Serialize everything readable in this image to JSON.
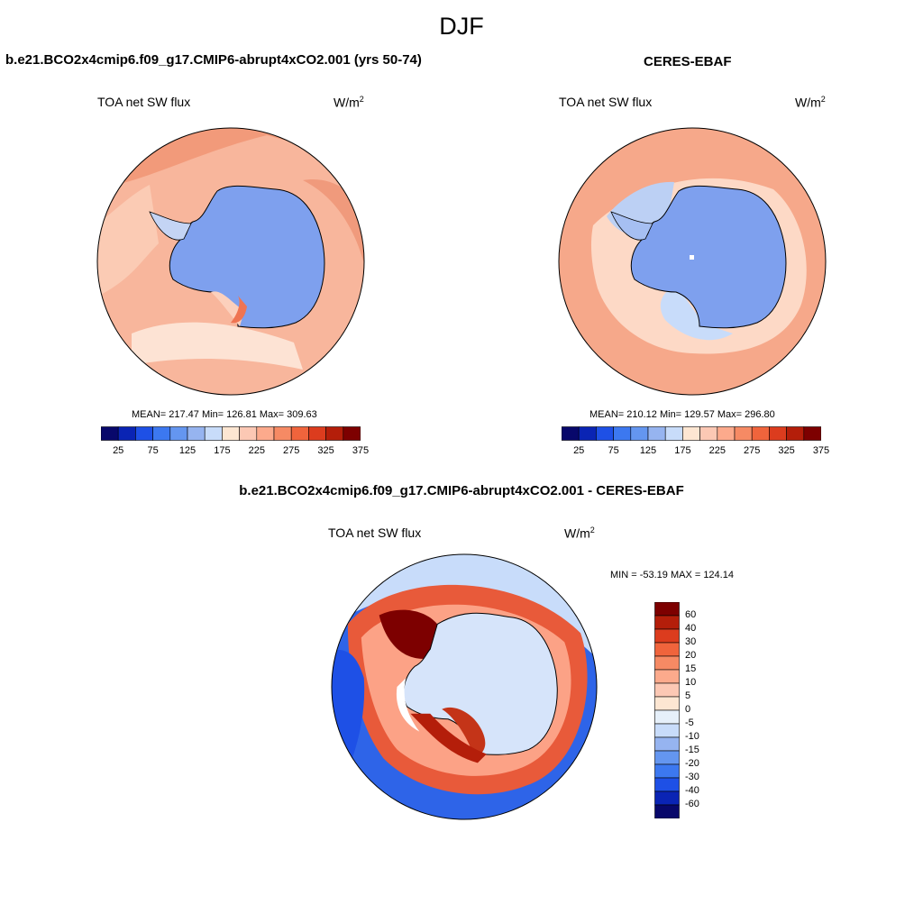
{
  "title": "DJF",
  "panels": [
    {
      "title": "b.e21.BCO2x4cmip6.f09_g17.CMIP6-abrupt4xCO2.001 (yrs 50-74)",
      "variable": "TOA net SW flux",
      "units_base": "W/m",
      "units_exp": "2",
      "stats": "MEAN= 217.47  Min= 126.81  Max= 309.63"
    },
    {
      "title": "CERES-EBAF",
      "variable": "TOA net SW flux",
      "units_base": "W/m",
      "units_exp": "2",
      "stats": "MEAN= 210.12  Min= 129.57  Max= 296.80"
    },
    {
      "title": "b.e21.BCO2x4cmip6.f09_g17.CMIP6-abrupt4xCO2.001 - CERES-EBAF",
      "variable": "TOA net SW flux",
      "units_base": "W/m",
      "units_exp": "2",
      "stats": "MIN = -53.19 MAX = 124.14"
    }
  ],
  "colorbar_main": {
    "colors": [
      "#08086b",
      "#0a24b4",
      "#1e50e6",
      "#3c78f0",
      "#6496f0",
      "#96b4f0",
      "#c8dcfa",
      "#fde6d2",
      "#fcc8b4",
      "#fcaa8c",
      "#f68a64",
      "#f0643c",
      "#dc3c1e",
      "#b41e0a",
      "#7d0000"
    ],
    "labels": [
      "25",
      "75",
      "125",
      "175",
      "225",
      "275",
      "325",
      "375"
    ]
  },
  "colorbar_diff": {
    "colors": [
      "#7d0000",
      "#b41e0a",
      "#dc3c1e",
      "#f0643c",
      "#f68a64",
      "#fcaa8c",
      "#fcc8b4",
      "#fde6d2",
      "#e6f0fa",
      "#c8dcfa",
      "#96b4f0",
      "#6496f0",
      "#3c78f0",
      "#1e50e6",
      "#0a24b4",
      "#08086b"
    ],
    "labels": [
      "60",
      "40",
      "30",
      "20",
      "15",
      "10",
      "5",
      "0",
      "-5",
      "-10",
      "-15",
      "-20",
      "-30",
      "-40",
      "-60"
    ]
  }
}
